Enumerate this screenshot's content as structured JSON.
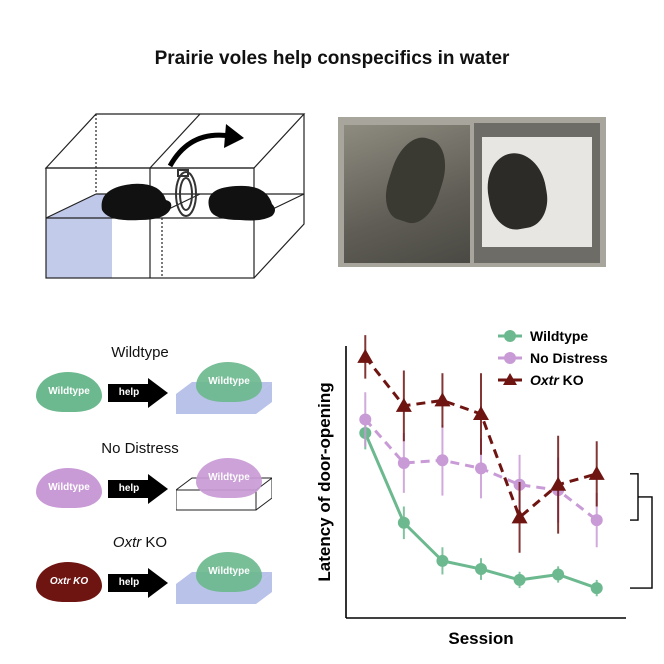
{
  "figure": {
    "title": "Prairie voles help conspecifics in water"
  },
  "conditions": [
    {
      "label_main": "Wildtype",
      "label_suffix": "",
      "vole_text": "Wildtype",
      "vole_color": "#6db98f",
      "action": "help",
      "target_vole_text": "Wildtype",
      "target_vole_color": "#6db98f",
      "target_env": "water"
    },
    {
      "label_main": "No Distress",
      "label_suffix": "",
      "vole_text": "Wildtype",
      "vole_color": "#c99bd6",
      "action": "help",
      "target_vole_text": "Wildtype",
      "target_vole_color": "#c99bd6",
      "target_env": "dry"
    },
    {
      "label_main": "Oxtr",
      "label_suffix": " KO",
      "vole_text": "Oxtr KO",
      "vole_color": "#6e1512",
      "action": "help",
      "target_vole_text": "Wildtype",
      "target_vole_color": "#6db98f",
      "target_env": "water"
    }
  ],
  "colors": {
    "wildtype": "#6db98f",
    "no_distress": "#c99bd6",
    "oxtr_ko": "#6e1512",
    "water": "#b9c2e8"
  },
  "chart_data": {
    "type": "line",
    "xlabel": "Session",
    "ylabel": "Latency of door-opening",
    "x": [
      1,
      2,
      3,
      4,
      5,
      6,
      7
    ],
    "ylim": [
      0,
      10
    ],
    "legend_position": "top-right",
    "significance_label": "*",
    "series": [
      {
        "name": "Wildtype",
        "name_suffix": "",
        "marker": "circle",
        "dashed": false,
        "color": "#6db98f",
        "values": [
          6.8,
          3.5,
          2.1,
          1.8,
          1.4,
          1.6,
          1.1
        ],
        "errors": [
          0.6,
          0.6,
          0.5,
          0.4,
          0.3,
          0.3,
          0.3
        ]
      },
      {
        "name": "No Distress",
        "name_suffix": "",
        "marker": "circle",
        "dashed": true,
        "color": "#c99bd6",
        "values": [
          7.3,
          5.7,
          5.8,
          5.5,
          4.9,
          4.7,
          3.6
        ],
        "errors": [
          1.0,
          1.1,
          1.3,
          1.1,
          1.1,
          1.2,
          1.0
        ]
      },
      {
        "name": "Oxtr",
        "name_suffix": " KO",
        "marker": "triangle",
        "dashed": true,
        "color": "#6e1512",
        "values": [
          9.6,
          7.8,
          8.0,
          7.5,
          3.7,
          4.9,
          5.3
        ],
        "errors": [
          0.8,
          1.3,
          1.0,
          1.5,
          1.3,
          1.8,
          1.2
        ]
      }
    ]
  }
}
